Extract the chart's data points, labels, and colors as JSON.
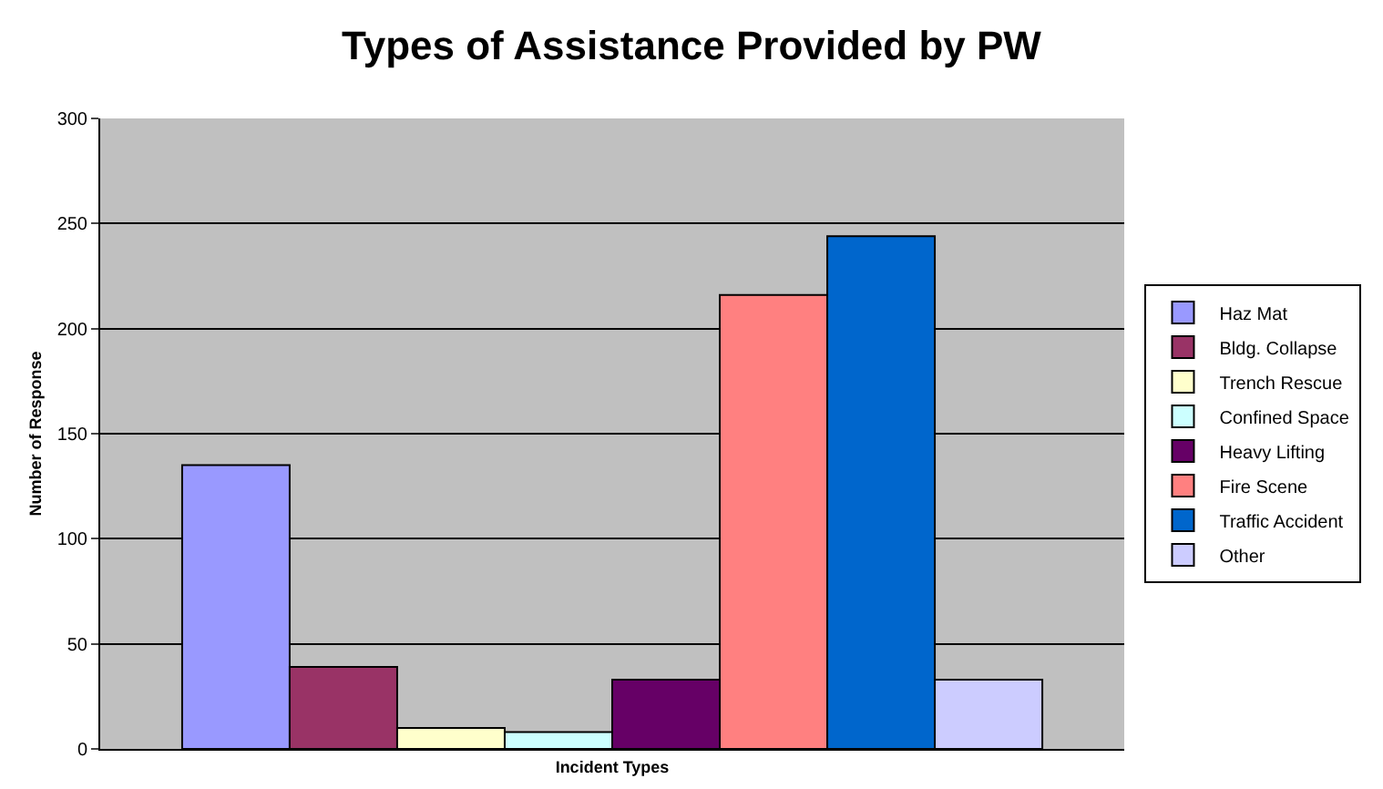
{
  "chart_data": {
    "type": "bar",
    "title": "Types of Assistance Provided by PW",
    "xlabel": "Incident Types",
    "ylabel": "Number of Response",
    "categories": [
      null
    ],
    "series": [
      {
        "name": "Haz Mat",
        "color": "#9999ff",
        "values": [
          135
        ]
      },
      {
        "name": "Bldg. Collapse",
        "color": "#993366",
        "values": [
          39
        ]
      },
      {
        "name": "Trench Rescue",
        "color": "#ffffcc",
        "values": [
          10
        ]
      },
      {
        "name": "Confined Space",
        "color": "#ccffff",
        "values": [
          8
        ]
      },
      {
        "name": "Heavy Lifting",
        "color": "#660066",
        "values": [
          33
        ]
      },
      {
        "name": "Fire Scene",
        "color": "#ff8080",
        "values": [
          216
        ]
      },
      {
        "name": "Traffic Accident",
        "color": "#0066cc",
        "values": [
          244
        ]
      },
      {
        "name": "Other",
        "color": "#ccccff",
        "values": [
          33
        ]
      }
    ],
    "ylim": [
      0,
      300
    ],
    "yticks": [
      0,
      50,
      100,
      150,
      200,
      250,
      300
    ],
    "grid": "y",
    "legend": "right"
  }
}
